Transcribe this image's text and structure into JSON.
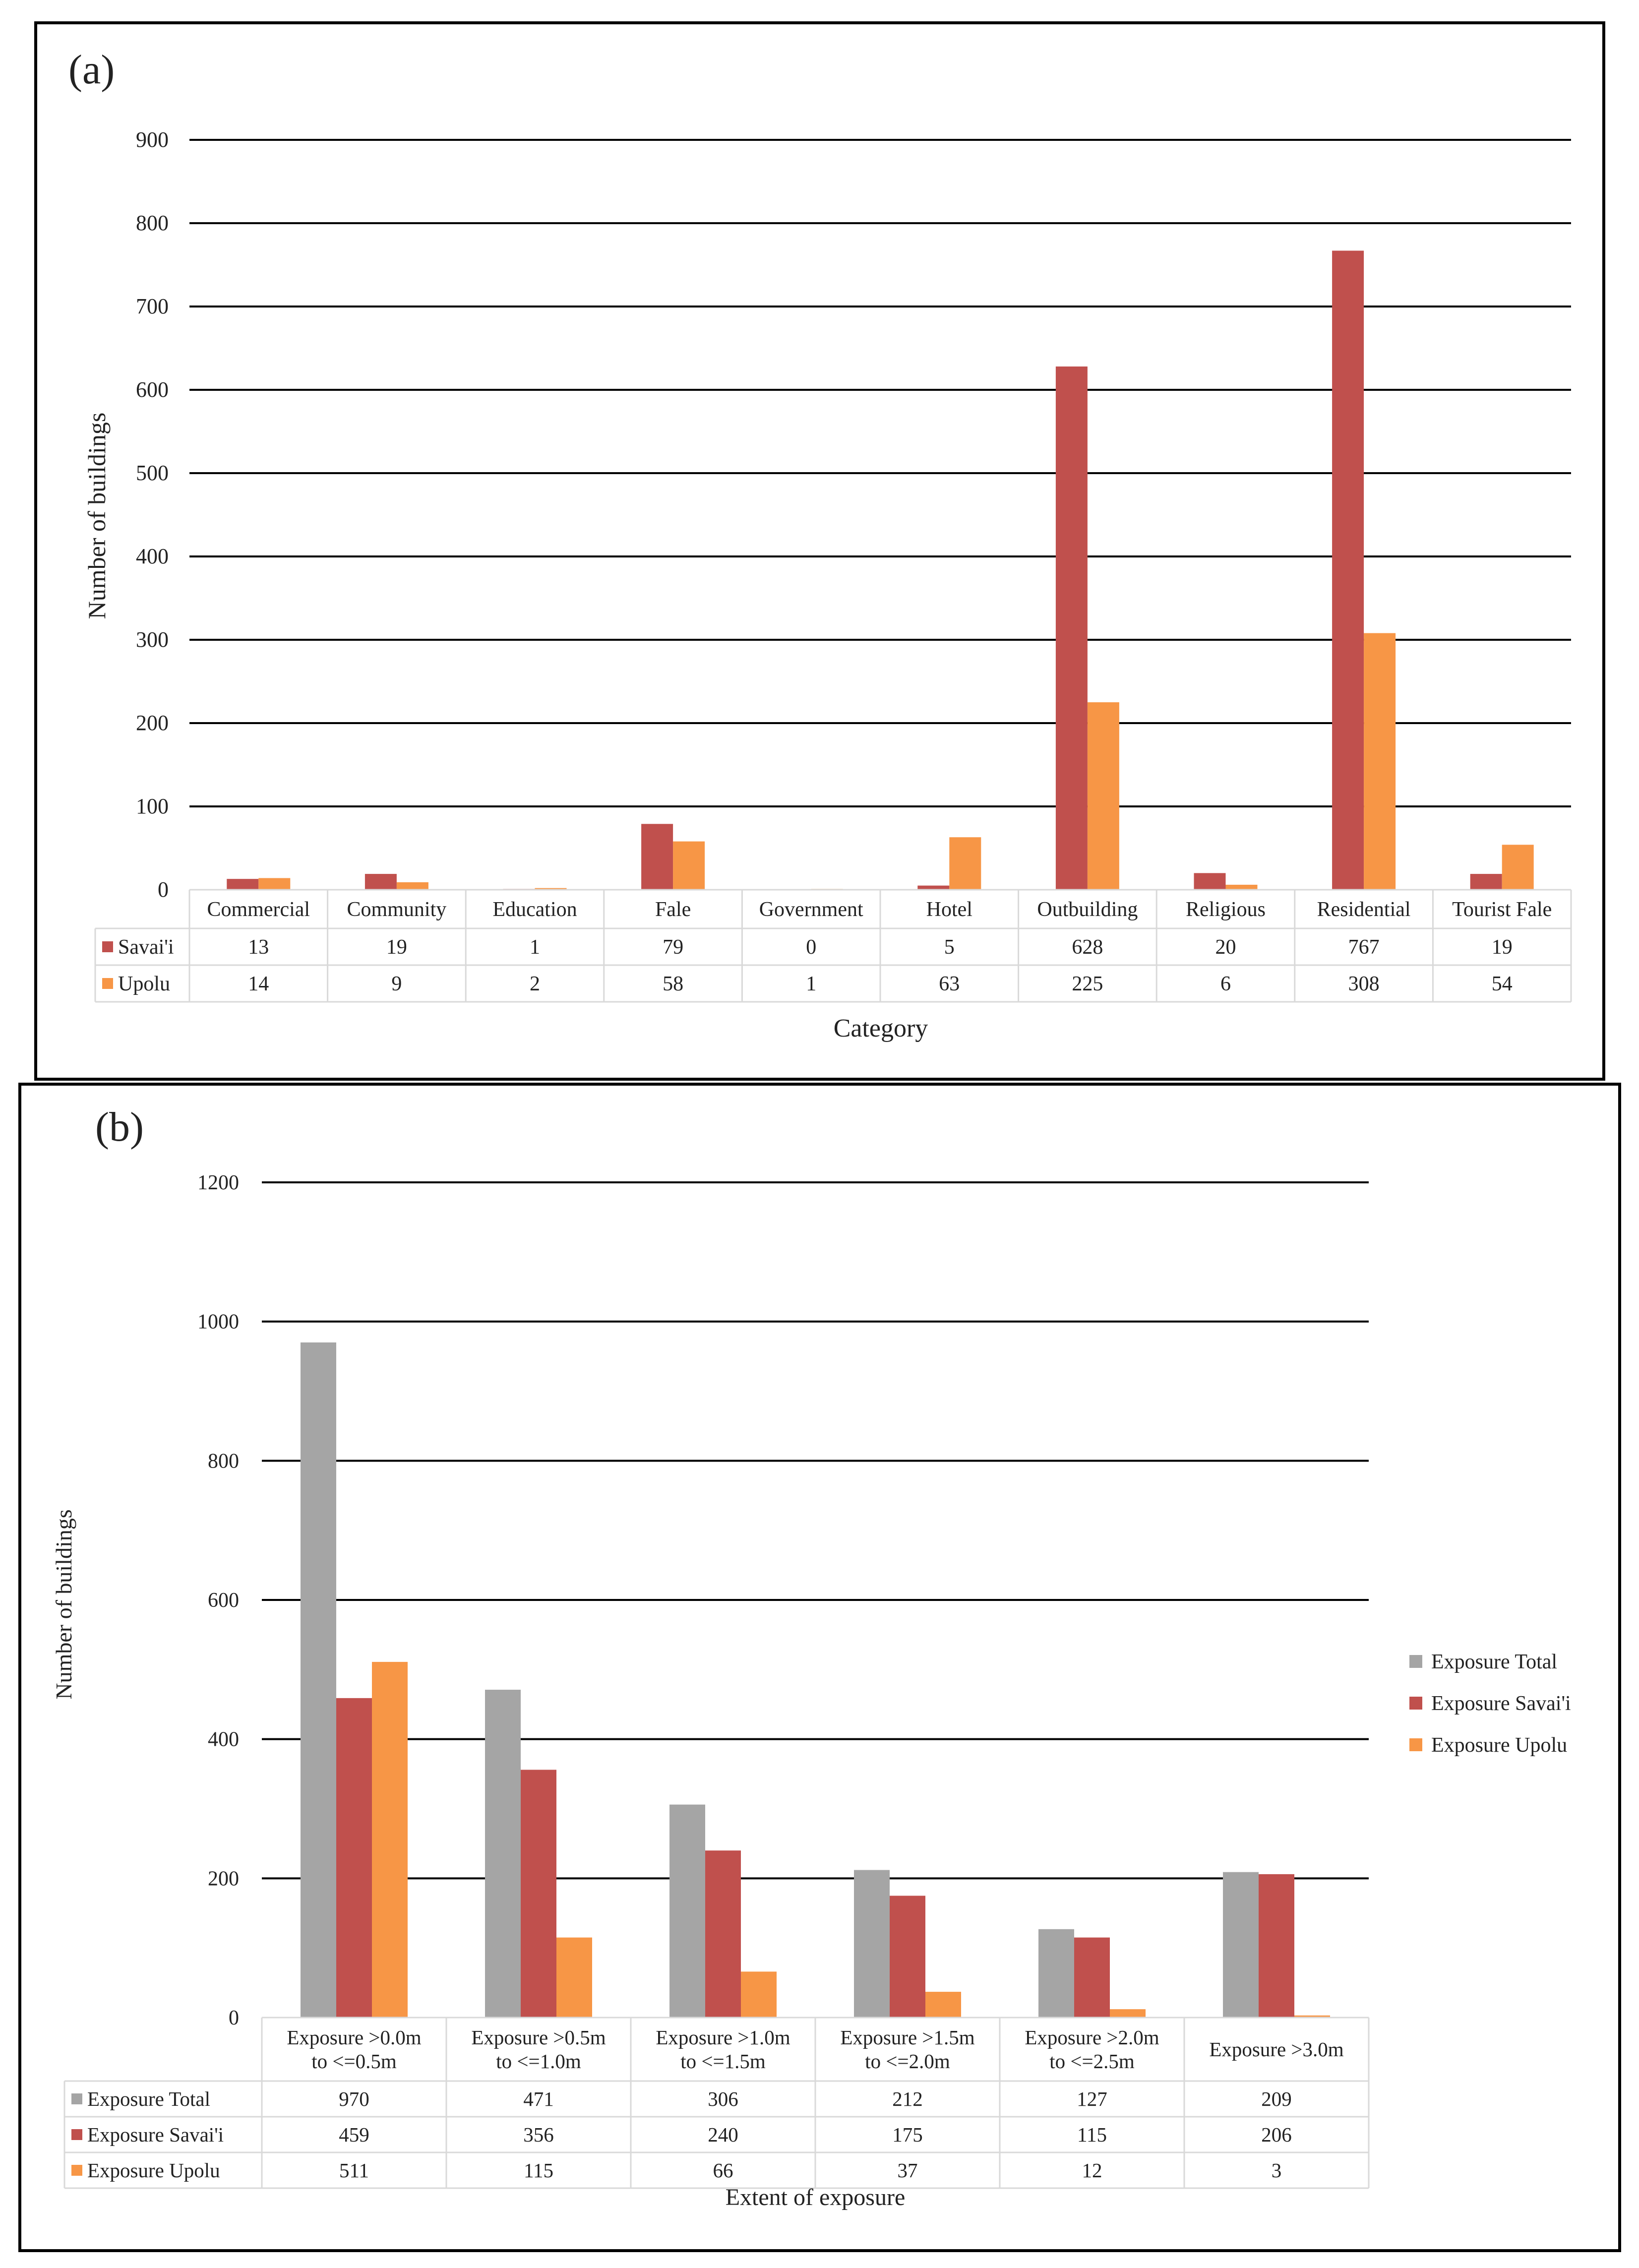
{
  "colors": {
    "savaii": "#c0504d",
    "upolu": "#f79646",
    "total": "#a5a5a5",
    "grid": "#000000",
    "table_border": "#d9d9d9",
    "frame": "#000000"
  },
  "chart_data": [
    {
      "panel_label": "(a)",
      "type": "bar",
      "title": "",
      "xlabel": "Category",
      "ylabel": "Number of buildings",
      "ylim": [
        0,
        900
      ],
      "yticks": [
        "0",
        "100",
        "200",
        "300",
        "400",
        "500",
        "600",
        "700",
        "800",
        "900"
      ],
      "grid": true,
      "categories": [
        "Commercial",
        "Community",
        "Education",
        "Fale",
        "Government",
        "Hotel",
        "Outbuilding",
        "Religious",
        "Residential",
        "Tourist Fale"
      ],
      "series": [
        {
          "name": "Savai'i",
          "color": "#c0504d",
          "values": [
            13,
            19,
            1,
            79,
            0,
            5,
            628,
            20,
            767,
            19
          ]
        },
        {
          "name": "Upolu",
          "color": "#f79646",
          "values": [
            14,
            9,
            2,
            58,
            1,
            63,
            225,
            6,
            308,
            54
          ]
        }
      ],
      "legend": "data-table"
    },
    {
      "panel_label": "(b)",
      "type": "bar",
      "title": "",
      "xlabel": "Extent of exposure",
      "ylabel": "Number of buildings",
      "ylim": [
        0,
        1200
      ],
      "yticks": [
        "0",
        "200",
        "400",
        "600",
        "800",
        "1000",
        "1200"
      ],
      "grid": true,
      "categories": [
        [
          "Exposure >0.0m",
          "to <=0.5m"
        ],
        [
          "Exposure >0.5m",
          "to <=1.0m"
        ],
        [
          "Exposure >1.0m",
          "to <=1.5m"
        ],
        [
          "Exposure >1.5m",
          "to <=2.0m"
        ],
        [
          "Exposure >2.0m",
          "to <=2.5m"
        ],
        [
          "Exposure >3.0m"
        ]
      ],
      "series": [
        {
          "name": "Exposure Total",
          "color": "#a5a5a5",
          "values": [
            970,
            471,
            306,
            212,
            127,
            209
          ]
        },
        {
          "name": "Exposure Savai'i",
          "color": "#c0504d",
          "values": [
            459,
            356,
            240,
            175,
            115,
            206
          ]
        },
        {
          "name": "Exposure Upolu",
          "color": "#f79646",
          "values": [
            511,
            115,
            66,
            37,
            12,
            3
          ]
        }
      ],
      "legend": "right"
    }
  ]
}
